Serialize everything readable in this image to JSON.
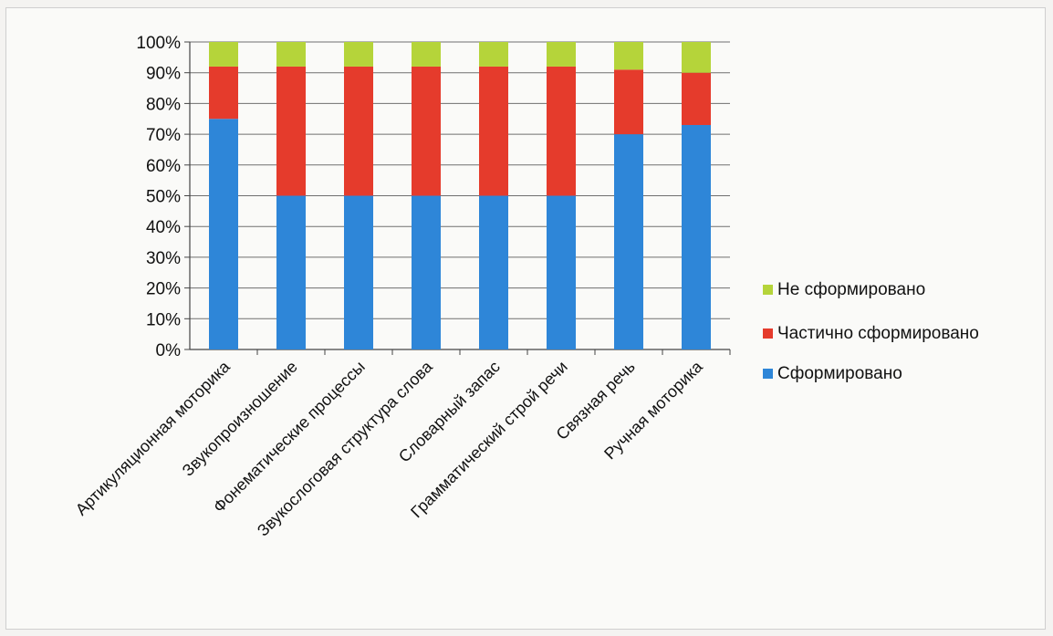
{
  "chart_data": {
    "type": "bar",
    "stacked": "percent",
    "title": "",
    "xlabel": "",
    "ylabel": "",
    "ylim": [
      0,
      100
    ],
    "y_ticks": [
      "0%",
      "10%",
      "20%",
      "30%",
      "40%",
      "50%",
      "60%",
      "70%",
      "80%",
      "90%",
      "100%"
    ],
    "grid": true,
    "legend_position": "right",
    "categories": [
      "Артикуляционная моторика",
      "Звукопроизношение",
      "Фонематические процессы",
      "Звукослоговая структура слова",
      "Словарный запас",
      "Грамматический строй речи",
      "Связная речь",
      "Ручная моторика"
    ],
    "series": [
      {
        "name": "Сформировано",
        "color": "#2e86d8",
        "values": [
          75,
          50,
          50,
          50,
          50,
          50,
          70,
          73
        ]
      },
      {
        "name": "Частично сформировано",
        "color": "#e53b2c",
        "values": [
          17,
          42,
          42,
          42,
          42,
          42,
          21,
          17
        ]
      },
      {
        "name": "Не сформировано",
        "color": "#b5d43a",
        "values": [
          8,
          8,
          8,
          8,
          8,
          8,
          9,
          10
        ]
      }
    ],
    "legend_order": [
      "Не сформировано",
      "Частично сформировано",
      "Сформировано"
    ]
  }
}
